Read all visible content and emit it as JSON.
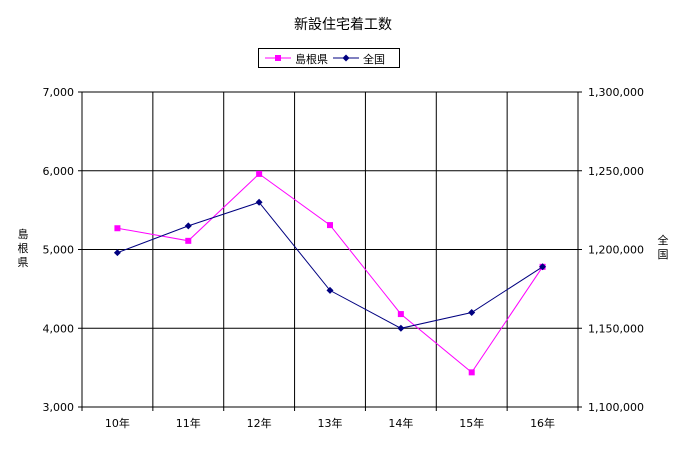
{
  "chart_data": {
    "type": "line",
    "title": "新設住宅着工数",
    "categories": [
      "10年",
      "11年",
      "12年",
      "13年",
      "14年",
      "15年",
      "16年"
    ],
    "y_left": {
      "label": "島根県",
      "min": 3000,
      "max": 7000,
      "ticks": [
        "3,000",
        "4,000",
        "5,000",
        "6,000",
        "7,000"
      ]
    },
    "y_right": {
      "label": "全国",
      "min": 1100000,
      "max": 1300000,
      "ticks": [
        "1,100,000",
        "1,150,000",
        "1,200,000",
        "1,250,000",
        "1,300,000"
      ]
    },
    "grid": true,
    "legend_position": "top-center",
    "series": [
      {
        "name": "島根県",
        "axis": "left",
        "color": "#ff00ff",
        "marker": "square",
        "values": [
          5270,
          5110,
          5960,
          5310,
          4180,
          3440,
          4780
        ]
      },
      {
        "name": "全国",
        "axis": "right",
        "color": "#000080",
        "marker": "diamond",
        "values": [
          1198000,
          1215000,
          1230000,
          1174000,
          1150000,
          1160000,
          1189000
        ]
      }
    ]
  }
}
